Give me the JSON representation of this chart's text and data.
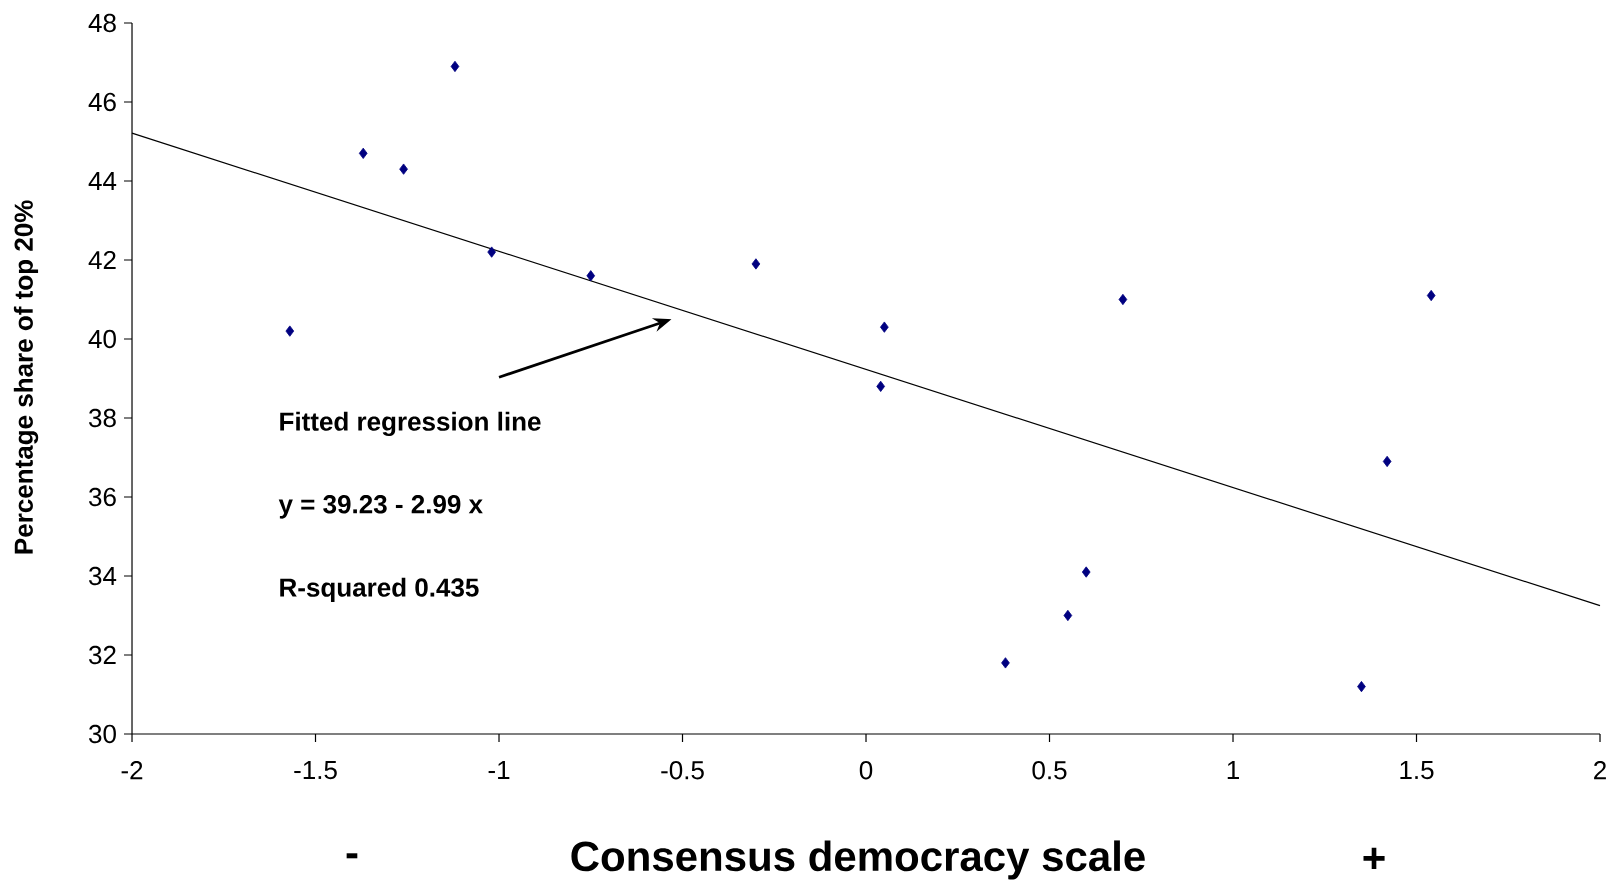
{
  "chart_data": {
    "type": "scatter",
    "xlabel": "Consensus democracy scale",
    "ylabel": "Percentage share of top 20%",
    "annotations": [
      "Fitted regression line",
      "y = 39.23 - 2.99 x",
      "R-squared 0.435",
      "-",
      "+"
    ],
    "series": [
      {
        "color": "#000080",
        "marker": "diamond",
        "x": [
          -1.57,
          -1.37,
          -1.26,
          -1.12,
          -1.02,
          -0.75,
          -0.3,
          0.05,
          0.04,
          0.38,
          0.55,
          0.6,
          0.7,
          1.35,
          1.42,
          1.54
        ],
        "values": [
          40.2,
          44.7,
          44.3,
          46.9,
          42.2,
          41.6,
          41.9,
          40.3,
          38.8,
          31.8,
          33.0,
          34.1,
          41.0,
          31.2,
          36.9,
          41.1
        ]
      },
      {
        "type": "line",
        "color": "#000000",
        "marker": "none",
        "line_style": "solid",
        "x": [
          -2,
          2
        ],
        "values": [
          45.21,
          33.25
        ]
      }
    ],
    "xlim": [
      -2,
      2
    ],
    "ylim": [
      30,
      48
    ],
    "xticks": [
      -2,
      -1.5,
      -1,
      -0.5,
      0,
      0.5,
      1,
      1.5,
      2
    ],
    "yticks": [
      30,
      32,
      34,
      36,
      38,
      40,
      42,
      44,
      46,
      48
    ],
    "grid": false
  }
}
